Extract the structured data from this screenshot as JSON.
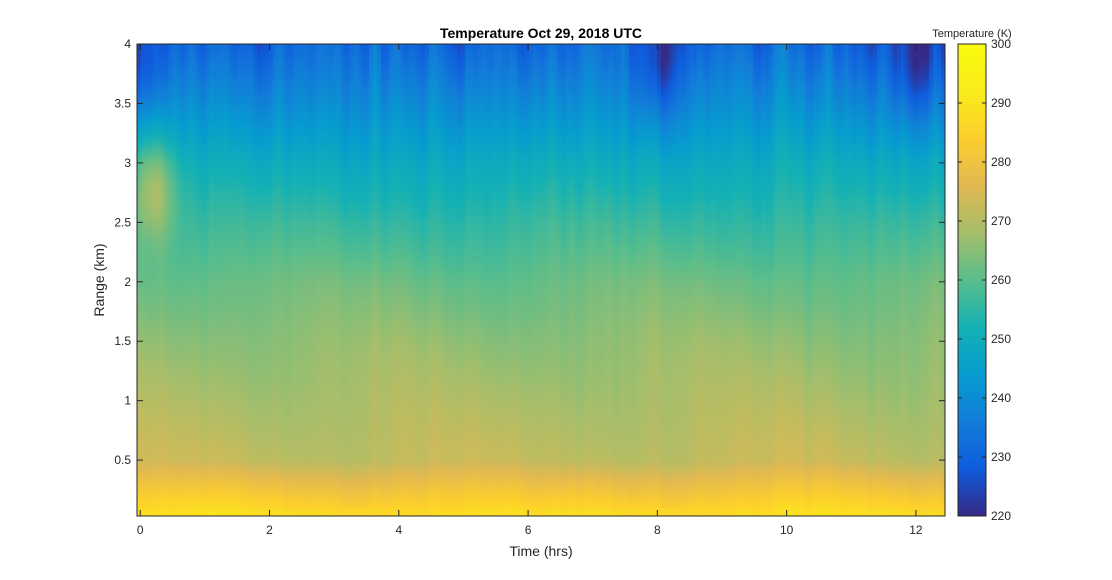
{
  "chart_data": {
    "type": "heatmap",
    "title": "Temperature Oct 29, 2018 UTC",
    "xlabel": "Time (hrs)",
    "ylabel": "Range (km)",
    "xlim": [
      -0.05,
      12.45
    ],
    "ylim": [
      0.03,
      4.0
    ],
    "xticks": [
      "0",
      "2",
      "4",
      "6",
      "8",
      "10",
      "12"
    ],
    "yticks": [
      "0.5",
      "1",
      "1.5",
      "2",
      "2.5",
      "3",
      "3.5",
      "4"
    ],
    "colorbar": {
      "label": "Temperature (K)",
      "range": [
        220,
        300
      ],
      "ticks": [
        "220",
        "230",
        "240",
        "250",
        "260",
        "270",
        "280",
        "290",
        "300"
      ],
      "colormap": "parula"
    },
    "profile_by_range_km": [
      {
        "range_km": 0.05,
        "temperature_K": 288
      },
      {
        "range_km": 0.5,
        "temperature_K": 272
      },
      {
        "range_km": 1.0,
        "temperature_K": 269
      },
      {
        "range_km": 1.5,
        "temperature_K": 266
      },
      {
        "range_km": 2.0,
        "temperature_K": 262
      },
      {
        "range_km": 2.5,
        "temperature_K": 256
      },
      {
        "range_km": 3.0,
        "temperature_K": 249
      },
      {
        "range_km": 3.5,
        "temperature_K": 240
      },
      {
        "range_km": 4.0,
        "temperature_K": 231
      }
    ],
    "notable_features": [
      {
        "x_hrs": 0.2,
        "range_km": 2.8,
        "temperature_K": 272
      },
      {
        "x_hrs": 0.0,
        "range_km": 3.8,
        "temperature_K": 222
      },
      {
        "x_hrs": 6.2,
        "range_km": 0.2,
        "temperature_K": 280
      },
      {
        "x_hrs": 8.0,
        "range_km": 3.8,
        "temperature_K": 222
      },
      {
        "x_hrs": 12.0,
        "range_km": 3.8,
        "temperature_K": 222
      }
    ],
    "grid": false
  }
}
